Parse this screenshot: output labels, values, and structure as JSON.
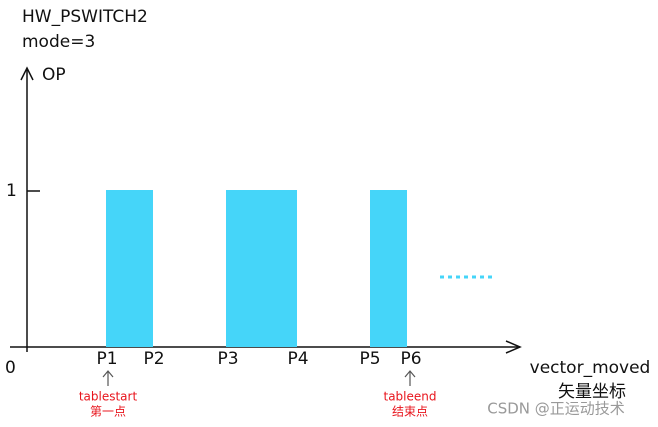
{
  "header": {
    "title": "HW_PSWITCH2",
    "mode": "mode=3"
  },
  "axes": {
    "y_label": "OP",
    "y_tick": "1",
    "origin": "0",
    "x_label": "vector_moved",
    "x_label_sub": "矢量坐标"
  },
  "points": [
    "P1",
    "P2",
    "P3",
    "P4",
    "P5",
    "P6"
  ],
  "annotations": [
    {
      "label": "tablestart",
      "sub": "第一点"
    },
    {
      "label": "tableend",
      "sub": "结束点"
    }
  ],
  "watermark": "CSDN @正运动技术"
}
